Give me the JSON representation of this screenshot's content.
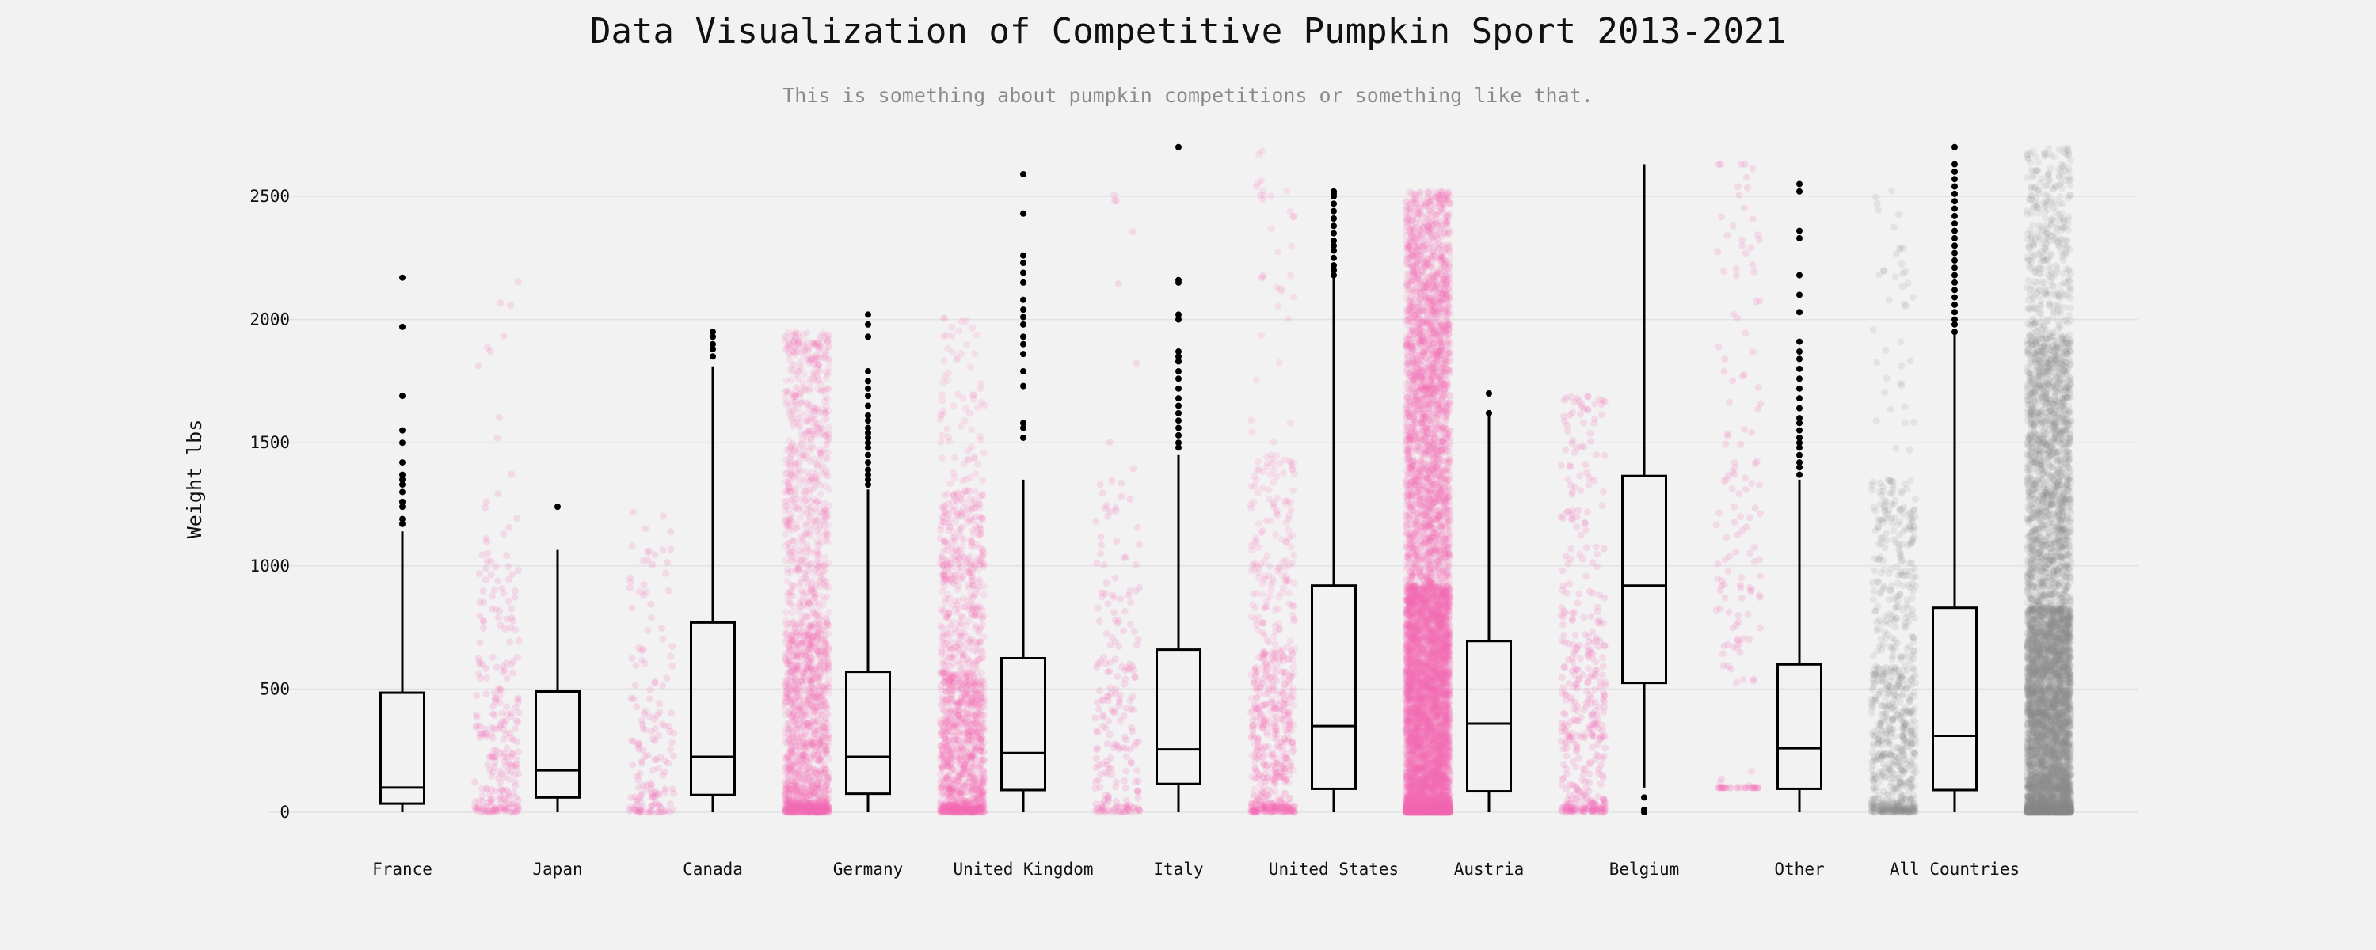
{
  "title": "Data Visualization of Competitive Pumpkin Sport 2013-2021",
  "subtitle": "This is something about pumpkin competitions or something like that.",
  "colors": {
    "background": "#f2f2f2",
    "grid": "#e2e2e2",
    "box_stroke": "#000000",
    "highlight": "#f56ab5",
    "neutral": "#8c8c8c"
  },
  "chart_data": {
    "type": "box",
    "ylabel": "Weight lbs",
    "xlabel": "",
    "ylim": [
      -150,
      2700
    ],
    "yticks": [
      0,
      500,
      1000,
      1500,
      2000,
      2500
    ],
    "grid": true,
    "categories": [
      "France",
      "Japan",
      "Canada",
      "Germany",
      "United Kingdom",
      "Italy",
      "United States",
      "Austria",
      "Belgium",
      "Other",
      "All Countries"
    ],
    "boxes": [
      {
        "q1": 35,
        "median": 100,
        "q3": 485,
        "whisker_low": 0,
        "whisker_high": 1140,
        "outliers": [
          1170,
          1190,
          1240,
          1260,
          1300,
          1330,
          1350,
          1370,
          1420,
          1500,
          1550,
          1690,
          1970,
          2170
        ],
        "strip_color": "highlight",
        "point_count": 260,
        "strip_density": "light"
      },
      {
        "q1": 60,
        "median": 170,
        "q3": 490,
        "whisker_low": 0,
        "whisker_high": 1065,
        "outliers": [
          1240
        ],
        "strip_color": "highlight",
        "point_count": 160,
        "strip_density": "light"
      },
      {
        "q1": 70,
        "median": 225,
        "q3": 770,
        "whisker_low": 0,
        "whisker_high": 1810,
        "outliers": [
          1850,
          1880,
          1900,
          1930,
          1950
        ],
        "strip_color": "highlight",
        "point_count": 2200,
        "strip_density": "heavy"
      },
      {
        "q1": 75,
        "median": 225,
        "q3": 570,
        "whisker_low": 0,
        "whisker_high": 1310,
        "outliers": [
          1330,
          1350,
          1370,
          1390,
          1420,
          1450,
          1480,
          1500,
          1520,
          1540,
          1560,
          1590,
          1610,
          1650,
          1690,
          1720,
          1750,
          1790,
          1930,
          1980,
          2020
        ],
        "strip_color": "highlight",
        "point_count": 1500,
        "strip_density": "medium"
      },
      {
        "q1": 90,
        "median": 240,
        "q3": 625,
        "whisker_low": 0,
        "whisker_high": 1350,
        "outliers": [
          1520,
          1560,
          1580,
          1730,
          1790,
          1860,
          1900,
          1930,
          1980,
          2010,
          2040,
          2080,
          2150,
          2190,
          2230,
          2260,
          2430,
          2590
        ],
        "strip_color": "highlight",
        "point_count": 220,
        "strip_density": "light"
      },
      {
        "q1": 115,
        "median": 255,
        "q3": 660,
        "whisker_low": 0,
        "whisker_high": 1450,
        "outliers": [
          1480,
          1500,
          1530,
          1560,
          1590,
          1620,
          1650,
          1680,
          1720,
          1760,
          1790,
          1830,
          1850,
          1870,
          2000,
          2020,
          2150,
          2160,
          2700
        ],
        "strip_color": "highlight",
        "point_count": 700,
        "strip_density": "medium"
      },
      {
        "q1": 95,
        "median": 350,
        "q3": 920,
        "whisker_low": 0,
        "whisker_high": 2170,
        "outliers": [
          2180,
          2200,
          2220,
          2250,
          2280,
          2300,
          2320,
          2350,
          2380,
          2410,
          2440,
          2470,
          2500,
          2510,
          2520
        ],
        "strip_color": "highlight",
        "point_count": 9000,
        "strip_density": "heavy"
      },
      {
        "q1": 85,
        "median": 360,
        "q3": 695,
        "whisker_low": 0,
        "whisker_high": 1620,
        "outliers": [
          1620,
          1700
        ],
        "strip_color": "highlight",
        "point_count": 420,
        "strip_density": "light"
      },
      {
        "q1": 525,
        "median": 920,
        "q3": 1365,
        "whisker_low": 100,
        "whisker_high": 2630,
        "outliers": [
          60,
          10,
          0
        ],
        "strip_color": "highlight",
        "point_count": 160,
        "strip_density": "light"
      },
      {
        "q1": 95,
        "median": 260,
        "q3": 600,
        "whisker_low": 0,
        "whisker_high": 1350,
        "outliers": [
          1370,
          1400,
          1420,
          1450,
          1480,
          1500,
          1520,
          1550,
          1580,
          1600,
          1640,
          1680,
          1720,
          1760,
          1800,
          1840,
          1870,
          1910,
          2030,
          2100,
          2180,
          2330,
          2360,
          2520,
          2550
        ],
        "strip_color": "neutral",
        "point_count": 800,
        "strip_density": "medium"
      },
      {
        "q1": 90,
        "median": 310,
        "q3": 830,
        "whisker_low": 0,
        "whisker_high": 1940,
        "outliers": [
          1950,
          1980,
          2000,
          2030,
          2060,
          2090,
          2120,
          2150,
          2180,
          2210,
          2240,
          2270,
          2300,
          2330,
          2360,
          2390,
          2420,
          2450,
          2480,
          2510,
          2540,
          2570,
          2600,
          2630,
          2700
        ],
        "strip_color": "neutral",
        "point_count": 7000,
        "strip_density": "heavy"
      }
    ]
  }
}
